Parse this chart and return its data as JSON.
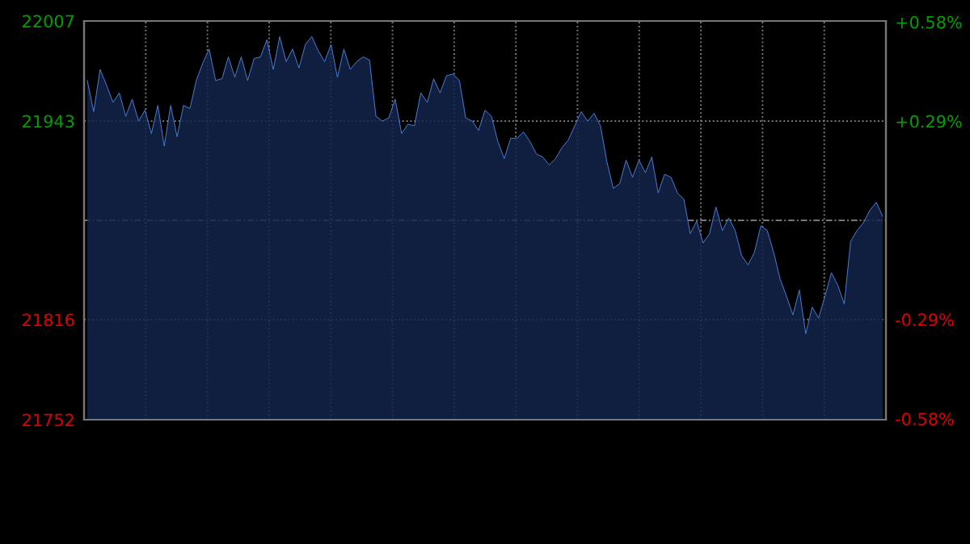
{
  "chart_data": {
    "type": "area",
    "categories": [
      null,
      null,
      null,
      null,
      null,
      null,
      null,
      null,
      null,
      null,
      null,
      null,
      null,
      null,
      null,
      null,
      null,
      null,
      null,
      null,
      null,
      null,
      null,
      null,
      null,
      null,
      null,
      null,
      null,
      null,
      null,
      null,
      null,
      null,
      null,
      null,
      null,
      null,
      null,
      null,
      null,
      null,
      null,
      null,
      null,
      null,
      null,
      null,
      null,
      null,
      null,
      null,
      null,
      null,
      null,
      null,
      null,
      null,
      null,
      null,
      null,
      null,
      null,
      null,
      null,
      null,
      null,
      null,
      null,
      null,
      null,
      null,
      null,
      null,
      null,
      null,
      null,
      null,
      null,
      null,
      null,
      null,
      null,
      null,
      null,
      null,
      null,
      null,
      null,
      null,
      null,
      null,
      null,
      null,
      null,
      null,
      null,
      null,
      null,
      null,
      null,
      null,
      null,
      null,
      null,
      null,
      null,
      null,
      null,
      null,
      null,
      null,
      null,
      null,
      null,
      null,
      null,
      null,
      null,
      null,
      null,
      null,
      null,
      null,
      null
    ],
    "series": [
      {
        "color": "#4a80d8",
        "values": [
          21969,
          21949,
          21976,
          21966,
          21955,
          21961,
          21946,
          21957,
          21943,
          21950,
          21935,
          21953,
          21927,
          21953,
          21933,
          21953,
          21951,
          21969,
          21980,
          21989,
          21969,
          21970,
          21984,
          21971,
          21984,
          21969,
          21983,
          21984,
          21995,
          21976,
          21997,
          21981,
          21989,
          21977,
          21992,
          21997,
          21988,
          21981,
          21992,
          21971,
          21989,
          21976,
          21981,
          21984,
          21982,
          21946,
          21943,
          21945,
          21957,
          21935,
          21941,
          21940,
          21961,
          21955,
          21970,
          21961,
          21972,
          21973,
          21969,
          21945,
          21943,
          21937,
          21950,
          21946,
          21930,
          21919,
          21932,
          21932,
          21936,
          21930,
          21922,
          21920,
          21915,
          21919,
          21926,
          21931,
          21940,
          21949,
          21943,
          21948,
          21940,
          21917,
          21900,
          21903,
          21918,
          21907,
          21918,
          21910,
          21920,
          21897,
          21909,
          21907,
          21897,
          21893,
          21871,
          21879,
          21865,
          21871,
          21888,
          21873,
          21881,
          21873,
          21857,
          21851,
          21859,
          21876,
          21873,
          21859,
          21842,
          21831,
          21819,
          21835,
          21807,
          21824,
          21817,
          21831,
          21846,
          21838,
          21826,
          21866,
          21873,
          21878,
          21886,
          21891,
          21882
        ]
      }
    ],
    "ylim": [
      21752,
      22007
    ],
    "yticks": [
      22007,
      21943,
      {
        "value": 21879.5,
        "label": null
      },
      21816,
      21752
    ],
    "y2lim": [
      -0.583,
      0.583
    ],
    "y2ticks": [
      {
        "value": 0.58,
        "label": "+0.58%"
      },
      {
        "value": 0.29,
        "label": "+0.29%"
      },
      {
        "value": -0.29,
        "label": "-0.29%"
      },
      {
        "value": -0.58,
        "label": "-0.58%"
      }
    ],
    "grid": true,
    "tick_labels": "y"
  }
}
